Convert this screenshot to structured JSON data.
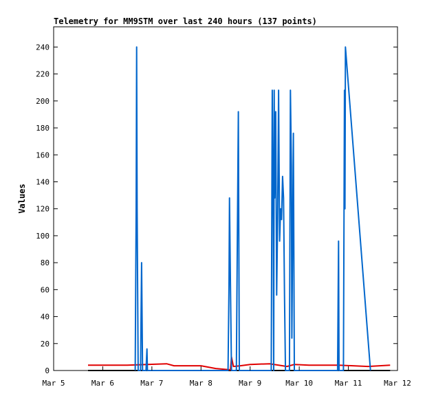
{
  "chart_data": {
    "type": "line",
    "title": "Telemetry for MM9STM over last 240 hours (137 points)",
    "xlabel": "",
    "ylabel": "Values",
    "ylim": [
      0,
      255
    ],
    "yticks": [
      0,
      20,
      40,
      60,
      80,
      100,
      120,
      140,
      160,
      180,
      200,
      220,
      240
    ],
    "xlim": [
      "Mar 5",
      "Mar 12"
    ],
    "xticks": [
      {
        "label": "Mar 5",
        "day": 5
      },
      {
        "label": "Mar 6",
        "day": 6
      },
      {
        "label": "Mar 7",
        "day": 7
      },
      {
        "label": "Mar 8",
        "day": 8
      },
      {
        "label": "Mar 9",
        "day": 9
      },
      {
        "label": "Mar 10",
        "day": 10
      },
      {
        "label": "Mar 11",
        "day": 11
      },
      {
        "label": "Mar 12",
        "day": 12
      }
    ],
    "grid": false,
    "colors": {
      "black": "#000000",
      "red": "#e00000",
      "blue": "#0066cc"
    },
    "series": [
      {
        "color": "black",
        "points": [
          [
            5.7,
            0
          ],
          [
            11.85,
            0
          ]
        ]
      },
      {
        "color": "red",
        "points": [
          [
            5.7,
            4
          ],
          [
            6.5,
            4
          ],
          [
            6.9,
            4.5
          ],
          [
            7.3,
            5
          ],
          [
            7.45,
            3.5
          ],
          [
            7.7,
            3.5
          ],
          [
            8.0,
            3.5
          ],
          [
            8.3,
            1.5
          ],
          [
            8.6,
            0.5
          ],
          [
            8.62,
            10
          ],
          [
            8.66,
            3
          ],
          [
            8.8,
            3.5
          ],
          [
            9.0,
            4.5
          ],
          [
            9.4,
            5
          ],
          [
            9.75,
            3
          ],
          [
            9.9,
            4.5
          ],
          [
            10.2,
            4
          ],
          [
            10.8,
            4
          ],
          [
            11.4,
            3
          ],
          [
            11.85,
            4
          ]
        ]
      },
      {
        "color": "blue",
        "points": [
          [
            6.66,
            0
          ],
          [
            6.68,
            120
          ],
          [
            6.69,
            240
          ],
          [
            6.7,
            120
          ],
          [
            6.72,
            0
          ],
          [
            6.77,
            0
          ],
          [
            6.78,
            40
          ],
          [
            6.79,
            80
          ],
          [
            6.8,
            40
          ],
          [
            6.81,
            0
          ],
          [
            6.88,
            0
          ],
          [
            6.9,
            16
          ],
          [
            6.91,
            0
          ],
          [
            8.55,
            0
          ],
          [
            8.57,
            64
          ],
          [
            8.58,
            128
          ],
          [
            8.6,
            64
          ],
          [
            8.62,
            0
          ],
          [
            8.72,
            0
          ],
          [
            8.73,
            48
          ],
          [
            8.74,
            96
          ],
          [
            8.76,
            192
          ],
          [
            8.77,
            96
          ],
          [
            8.78,
            0
          ],
          [
            9.43,
            0
          ],
          [
            9.45,
            208
          ],
          [
            9.47,
            112
          ],
          [
            9.48,
            0
          ],
          [
            9.49,
            208
          ],
          [
            9.5,
            128
          ],
          [
            9.52,
            192
          ],
          [
            9.54,
            56
          ],
          [
            9.56,
            112
          ],
          [
            9.58,
            208
          ],
          [
            9.6,
            96
          ],
          [
            9.62,
            120
          ],
          [
            9.64,
            112
          ],
          [
            9.66,
            144
          ],
          [
            9.68,
            128
          ],
          [
            9.7,
            56
          ],
          [
            9.72,
            0
          ],
          [
            9.8,
            0
          ],
          [
            9.82,
            208
          ],
          [
            9.84,
            152
          ],
          [
            9.85,
            24
          ],
          [
            9.86,
            72
          ],
          [
            9.88,
            176
          ],
          [
            9.89,
            88
          ],
          [
            9.9,
            0
          ],
          [
            10.78,
            0
          ],
          [
            10.8,
            96
          ],
          [
            10.81,
            0
          ],
          [
            10.9,
            0
          ],
          [
            10.92,
            208
          ],
          [
            10.93,
            120
          ],
          [
            10.94,
            240
          ],
          [
            11.45,
            0
          ]
        ]
      }
    ]
  }
}
